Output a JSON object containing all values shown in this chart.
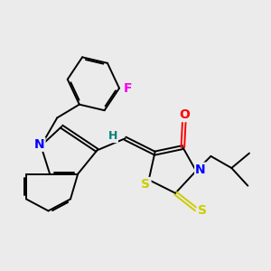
{
  "background_color": "#ebebeb",
  "atom_colors": {
    "O": "#ff0000",
    "N": "#0000ff",
    "S": "#cccc00",
    "F": "#ff00ee",
    "H": "#008080",
    "C": "#000000"
  },
  "figsize": [
    3.0,
    3.0
  ],
  "dpi": 100
}
